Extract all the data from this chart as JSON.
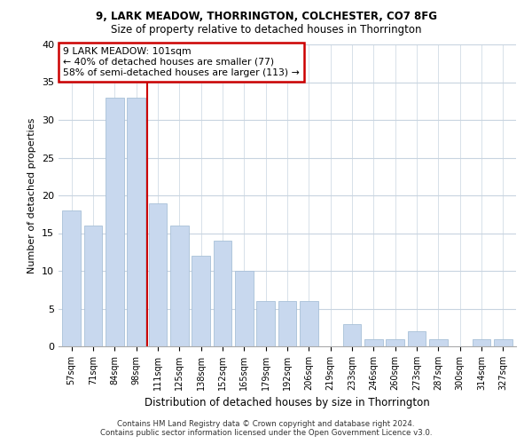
{
  "title1": "9, LARK MEADOW, THORRINGTON, COLCHESTER, CO7 8FG",
  "title2": "Size of property relative to detached houses in Thorrington",
  "xlabel": "Distribution of detached houses by size in Thorrington",
  "ylabel": "Number of detached properties",
  "categories": [
    "57sqm",
    "71sqm",
    "84sqm",
    "98sqm",
    "111sqm",
    "125sqm",
    "138sqm",
    "152sqm",
    "165sqm",
    "179sqm",
    "192sqm",
    "206sqm",
    "219sqm",
    "233sqm",
    "246sqm",
    "260sqm",
    "273sqm",
    "287sqm",
    "300sqm",
    "314sqm",
    "327sqm"
  ],
  "values": [
    18,
    16,
    33,
    33,
    19,
    16,
    12,
    14,
    10,
    6,
    6,
    6,
    0,
    3,
    1,
    1,
    2,
    1,
    0,
    1,
    1
  ],
  "bar_color": "#c8d8ee",
  "bar_edge_color": "#a8c0d8",
  "annotation_line1": "9 LARK MEADOW: 101sqm",
  "annotation_line2": "← 40% of detached houses are smaller (77)",
  "annotation_line3": "58% of semi-detached houses are larger (113) →",
  "annotation_box_color": "#ffffff",
  "annotation_box_edge": "#cc0000",
  "redline_color": "#cc0000",
  "grid_color": "#c8d4e0",
  "ylim": [
    0,
    40
  ],
  "yticks": [
    0,
    5,
    10,
    15,
    20,
    25,
    30,
    35,
    40
  ],
  "footer1": "Contains HM Land Registry data © Crown copyright and database right 2024.",
  "footer2": "Contains public sector information licensed under the Open Government Licence v3.0.",
  "bg_color": "#ffffff"
}
